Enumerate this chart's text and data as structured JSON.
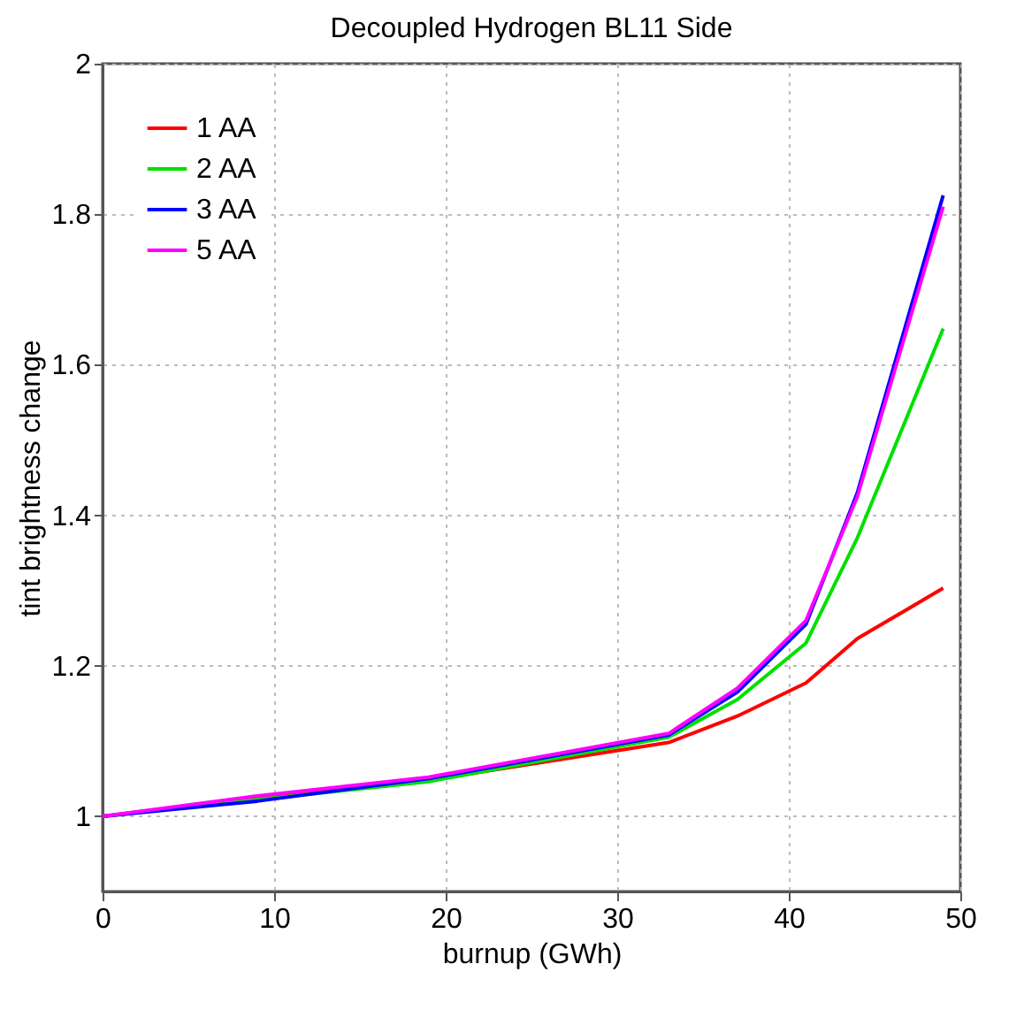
{
  "chart_data": {
    "type": "line",
    "title": "Decoupled Hydrogen BL11 Side",
    "xlabel": "burnup (GWh)",
    "ylabel": "tint brightness change",
    "x": [
      0,
      9,
      19,
      33,
      37,
      41,
      44,
      49
    ],
    "series": [
      {
        "name": "1 AA",
        "color": "#ff0000",
        "values": [
          1.0,
          1.025,
          1.048,
          1.098,
          1.133,
          1.177,
          1.236,
          1.303
        ]
      },
      {
        "name": "2 AA",
        "color": "#00e000",
        "values": [
          1.0,
          1.022,
          1.046,
          1.105,
          1.155,
          1.23,
          1.37,
          1.648
        ]
      },
      {
        "name": "3 AA",
        "color": "#0000ff",
        "values": [
          1.0,
          1.02,
          1.05,
          1.108,
          1.165,
          1.255,
          1.43,
          1.825
        ]
      },
      {
        "name": "5 AA",
        "color": "#ff00ff",
        "values": [
          1.0,
          1.027,
          1.052,
          1.11,
          1.17,
          1.26,
          1.425,
          1.81
        ]
      }
    ],
    "xlim": [
      0,
      50
    ],
    "xticks": [
      0,
      10,
      20,
      30,
      40,
      50
    ],
    "ylim": [
      0.9,
      2
    ],
    "yticks": [
      {
        "value": 1,
        "label": "1"
      },
      1.2,
      1.4,
      1.6,
      1.8,
      {
        "value": 2,
        "label": "2"
      }
    ],
    "grid": true,
    "legend": "top left",
    "line_style": "solid",
    "marker": "none"
  }
}
